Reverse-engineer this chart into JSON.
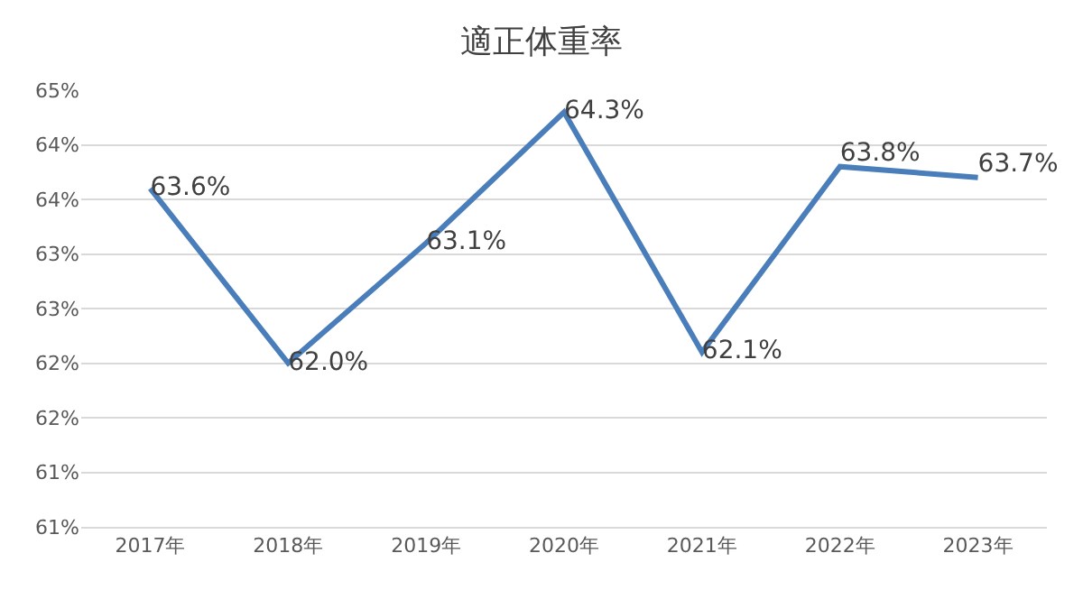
{
  "chart_data": {
    "type": "line",
    "title": "適正体重率",
    "categories": [
      "2017年",
      "2018年",
      "2019年",
      "2020年",
      "2021年",
      "2022年",
      "2023年"
    ],
    "series": [
      {
        "color": "#4a7ebb",
        "values": [
          63.6,
          62.0,
          63.1,
          64.3,
          62.1,
          63.8,
          63.7
        ],
        "value_labels": [
          "63.6%",
          "62.0%",
          "63.1%",
          "64.3%",
          "62.1%",
          "63.8%",
          "63.7%"
        ]
      }
    ],
    "ylim": [
      60.5,
      64.5
    ],
    "yticks": [
      {
        "value": 60.5,
        "label": "61%"
      },
      {
        "value": 61.0,
        "label": "61%"
      },
      {
        "value": 61.5,
        "label": "62%"
      },
      {
        "value": 62.0,
        "label": "62%"
      },
      {
        "value": 62.5,
        "label": "63%"
      },
      {
        "value": 63.0,
        "label": "63%"
      },
      {
        "value": 63.5,
        "label": "64%"
      },
      {
        "value": 64.0,
        "label": "64%"
      },
      {
        "value": 64.5,
        "label": "65%"
      }
    ],
    "grid": "y",
    "marker": "none",
    "line_style": "solid"
  }
}
